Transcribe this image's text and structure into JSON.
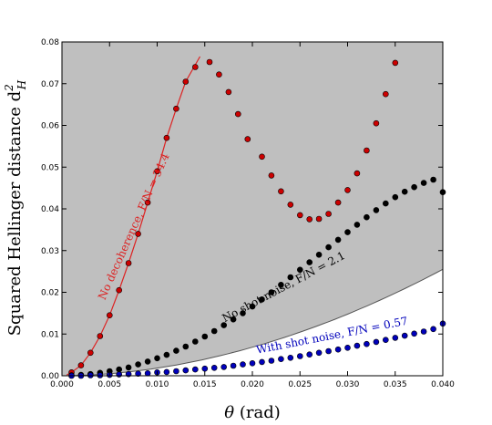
{
  "chart_data": {
    "type": "scatter",
    "xlabel": "θ (rad)",
    "ylabel": "Squared Hellinger distance d",
    "ylabel_sup": "2",
    "ylabel_sub": "H",
    "xlim": [
      0,
      0.04
    ],
    "ylim": [
      0,
      0.08
    ],
    "xticks": [
      "0.000",
      "0.005",
      "0.010",
      "0.015",
      "0.020",
      "0.025",
      "0.030",
      "0.035",
      "0.040"
    ],
    "yticks": [
      "0.00",
      "0.01",
      "0.02",
      "0.03",
      "0.04",
      "0.05",
      "0.06",
      "0.07",
      "0.08"
    ],
    "grid": false,
    "shaded_region": {
      "color": "#bfbfbf",
      "boundary_color": "#555555",
      "boundary_end_y": 0.0255
    },
    "series": [
      {
        "name": "No decoherence, F/N = 34.4",
        "color": "#cc0000",
        "line_color": "#dd2222",
        "line_x": [
          0.0005,
          0.001,
          0.002,
          0.003,
          0.004,
          0.005,
          0.006,
          0.007,
          0.008,
          0.009,
          0.01,
          0.011,
          0.012,
          0.013,
          0.0145
        ],
        "line_y": [
          0.0002,
          0.0008,
          0.0025,
          0.0055,
          0.0095,
          0.0145,
          0.0205,
          0.027,
          0.034,
          0.0415,
          0.049,
          0.057,
          0.064,
          0.0705,
          0.0765
        ],
        "x": [
          0.001,
          0.002,
          0.003,
          0.004,
          0.005,
          0.006,
          0.007,
          0.008,
          0.009,
          0.01,
          0.011,
          0.012,
          0.013,
          0.014,
          0.0155,
          0.0165,
          0.0175,
          0.0185,
          0.0195,
          0.021,
          0.022,
          0.023,
          0.024,
          0.025,
          0.026,
          0.027,
          0.028,
          0.029,
          0.03,
          0.031,
          0.032,
          0.033,
          0.034,
          0.035
        ],
        "y": [
          0.0008,
          0.0025,
          0.0055,
          0.0095,
          0.0145,
          0.0205,
          0.027,
          0.034,
          0.0415,
          0.049,
          0.057,
          0.064,
          0.0705,
          0.074,
          0.0752,
          0.0722,
          0.068,
          0.0627,
          0.0567,
          0.0525,
          0.048,
          0.0442,
          0.041,
          0.0385,
          0.0375,
          0.0376,
          0.0388,
          0.0415,
          0.0445,
          0.0485,
          0.054,
          0.0605,
          0.0675,
          0.075
        ]
      },
      {
        "name": "No shot noise, F/N = 2.1",
        "color": "#000000",
        "x": [
          0.001,
          0.002,
          0.003,
          0.004,
          0.005,
          0.006,
          0.007,
          0.008,
          0.009,
          0.01,
          0.011,
          0.012,
          0.013,
          0.014,
          0.015,
          0.016,
          0.017,
          0.018,
          0.019,
          0.02,
          0.021,
          0.022,
          0.023,
          0.024,
          0.025,
          0.026,
          0.027,
          0.028,
          0.029,
          0.03,
          0.031,
          0.032,
          0.033,
          0.034,
          0.035,
          0.036,
          0.037,
          0.038,
          0.039,
          0.04
        ],
        "y": [
          0.0001,
          0.0002,
          0.0004,
          0.0007,
          0.0011,
          0.0015,
          0.002,
          0.0027,
          0.0034,
          0.0042,
          0.005,
          0.006,
          0.007,
          0.0082,
          0.0094,
          0.0107,
          0.0121,
          0.0135,
          0.015,
          0.0166,
          0.0183,
          0.02,
          0.0218,
          0.0236,
          0.0254,
          0.0272,
          0.029,
          0.0308,
          0.0326,
          0.0344,
          0.0362,
          0.038,
          0.0397,
          0.0413,
          0.0428,
          0.0441,
          0.0452,
          0.0462,
          0.047,
          0.044
        ]
      },
      {
        "name": "With shot noise, F/N = 0.57",
        "color": "#0000bb",
        "x": [
          0.001,
          0.002,
          0.003,
          0.004,
          0.005,
          0.006,
          0.007,
          0.008,
          0.009,
          0.01,
          0.011,
          0.012,
          0.013,
          0.014,
          0.015,
          0.016,
          0.017,
          0.018,
          0.019,
          0.02,
          0.021,
          0.022,
          0.023,
          0.024,
          0.025,
          0.026,
          0.027,
          0.028,
          0.029,
          0.03,
          0.031,
          0.032,
          0.033,
          0.034,
          0.035,
          0.036,
          0.037,
          0.038,
          0.039,
          0.04
        ],
        "y": [
          0.0,
          0.0,
          0.0001,
          0.0001,
          0.0002,
          0.0003,
          0.0004,
          0.0005,
          0.0006,
          0.0008,
          0.0009,
          0.0011,
          0.0013,
          0.0015,
          0.0017,
          0.0019,
          0.0021,
          0.0024,
          0.0027,
          0.003,
          0.0033,
          0.0036,
          0.004,
          0.0043,
          0.0047,
          0.0051,
          0.0055,
          0.0059,
          0.0063,
          0.0067,
          0.0072,
          0.0076,
          0.0081,
          0.0086,
          0.0091,
          0.0096,
          0.0101,
          0.0106,
          0.0112,
          0.0125
        ]
      }
    ],
    "annotations": [
      {
        "text": "No decoherence, F/N = 34.4",
        "color": "#dd2222",
        "x": 0.0045,
        "y": 0.018,
        "rotate_deg": -66
      },
      {
        "text": "No shot noise, F/N = 2.1",
        "color": "#000000",
        "x": 0.0171,
        "y": 0.0128,
        "rotate_deg": -28
      },
      {
        "text": "With shot noise, F/N = 0.57",
        "color": "#0000bb",
        "x": 0.0205,
        "y": 0.0053,
        "rotate_deg": -11
      }
    ]
  }
}
